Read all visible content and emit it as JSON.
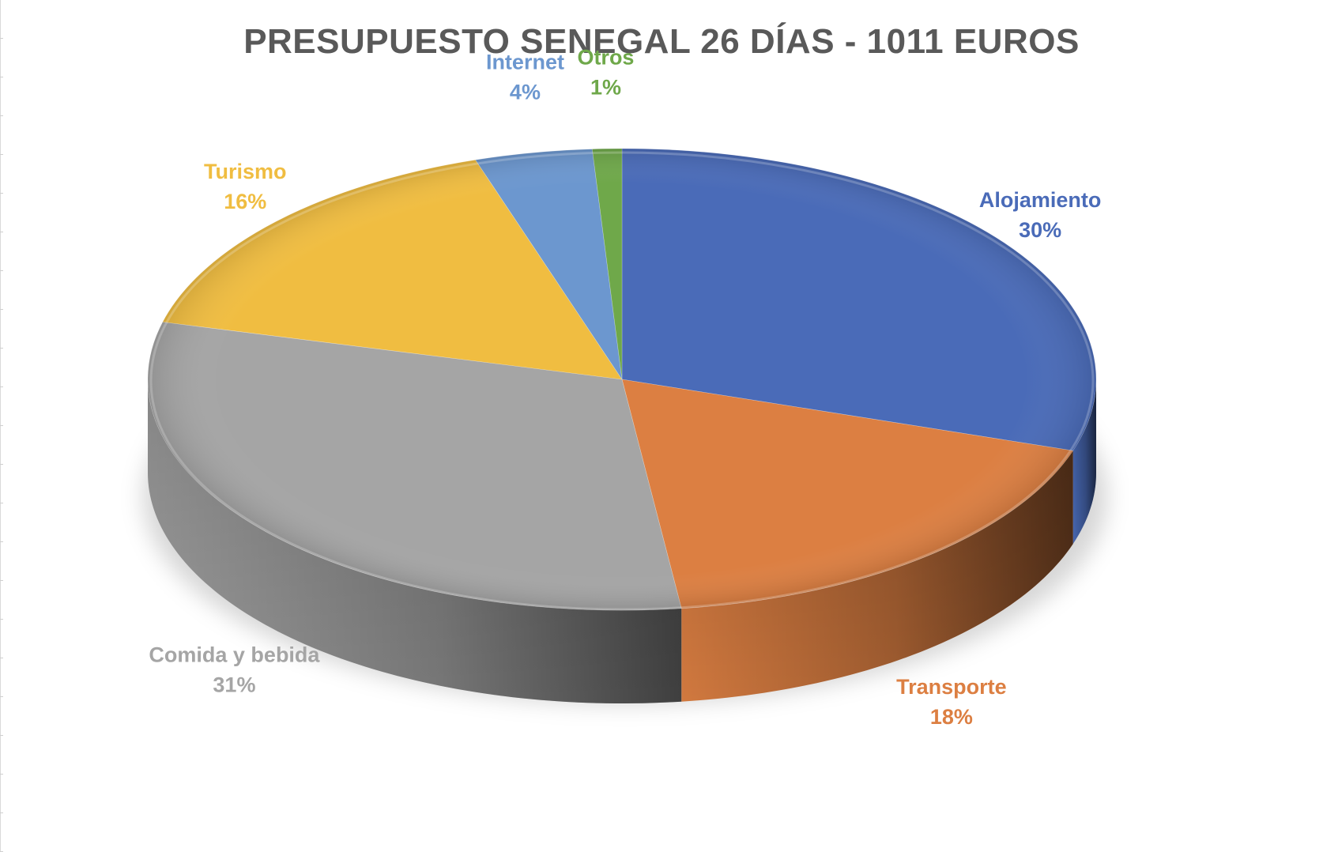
{
  "chart_data": {
    "type": "pie",
    "title": "PRESUPUESTO SENEGAL 26 DÍAS - 1011 EUROS",
    "slices": [
      {
        "name": "Alojamiento",
        "value": 30,
        "label": "30%",
        "color": "#4a6bb8"
      },
      {
        "name": "Transporte",
        "value": 18,
        "label": "18%",
        "color": "#dc7f42"
      },
      {
        "name": "Comida y bebida",
        "value": 31,
        "label": "31%",
        "color": "#a5a5a5"
      },
      {
        "name": "Turismo",
        "value": 16,
        "label": "16%",
        "color": "#f0bd41"
      },
      {
        "name": "Internet",
        "value": 4,
        "label": "4%",
        "color": "#6c97cf"
      },
      {
        "name": "Otros",
        "value": 1,
        "label": "1%",
        "color": "#6fa84a"
      }
    ],
    "label_colors": {
      "Alojamiento": "#4a6bb8",
      "Transporte": "#dc7f42",
      "Comida y bebida": "#a5a5a5",
      "Turismo": "#f0bd41",
      "Internet": "#6c97cf",
      "Otros": "#6fa84a"
    },
    "style": "3d-pie",
    "legend": "none"
  }
}
